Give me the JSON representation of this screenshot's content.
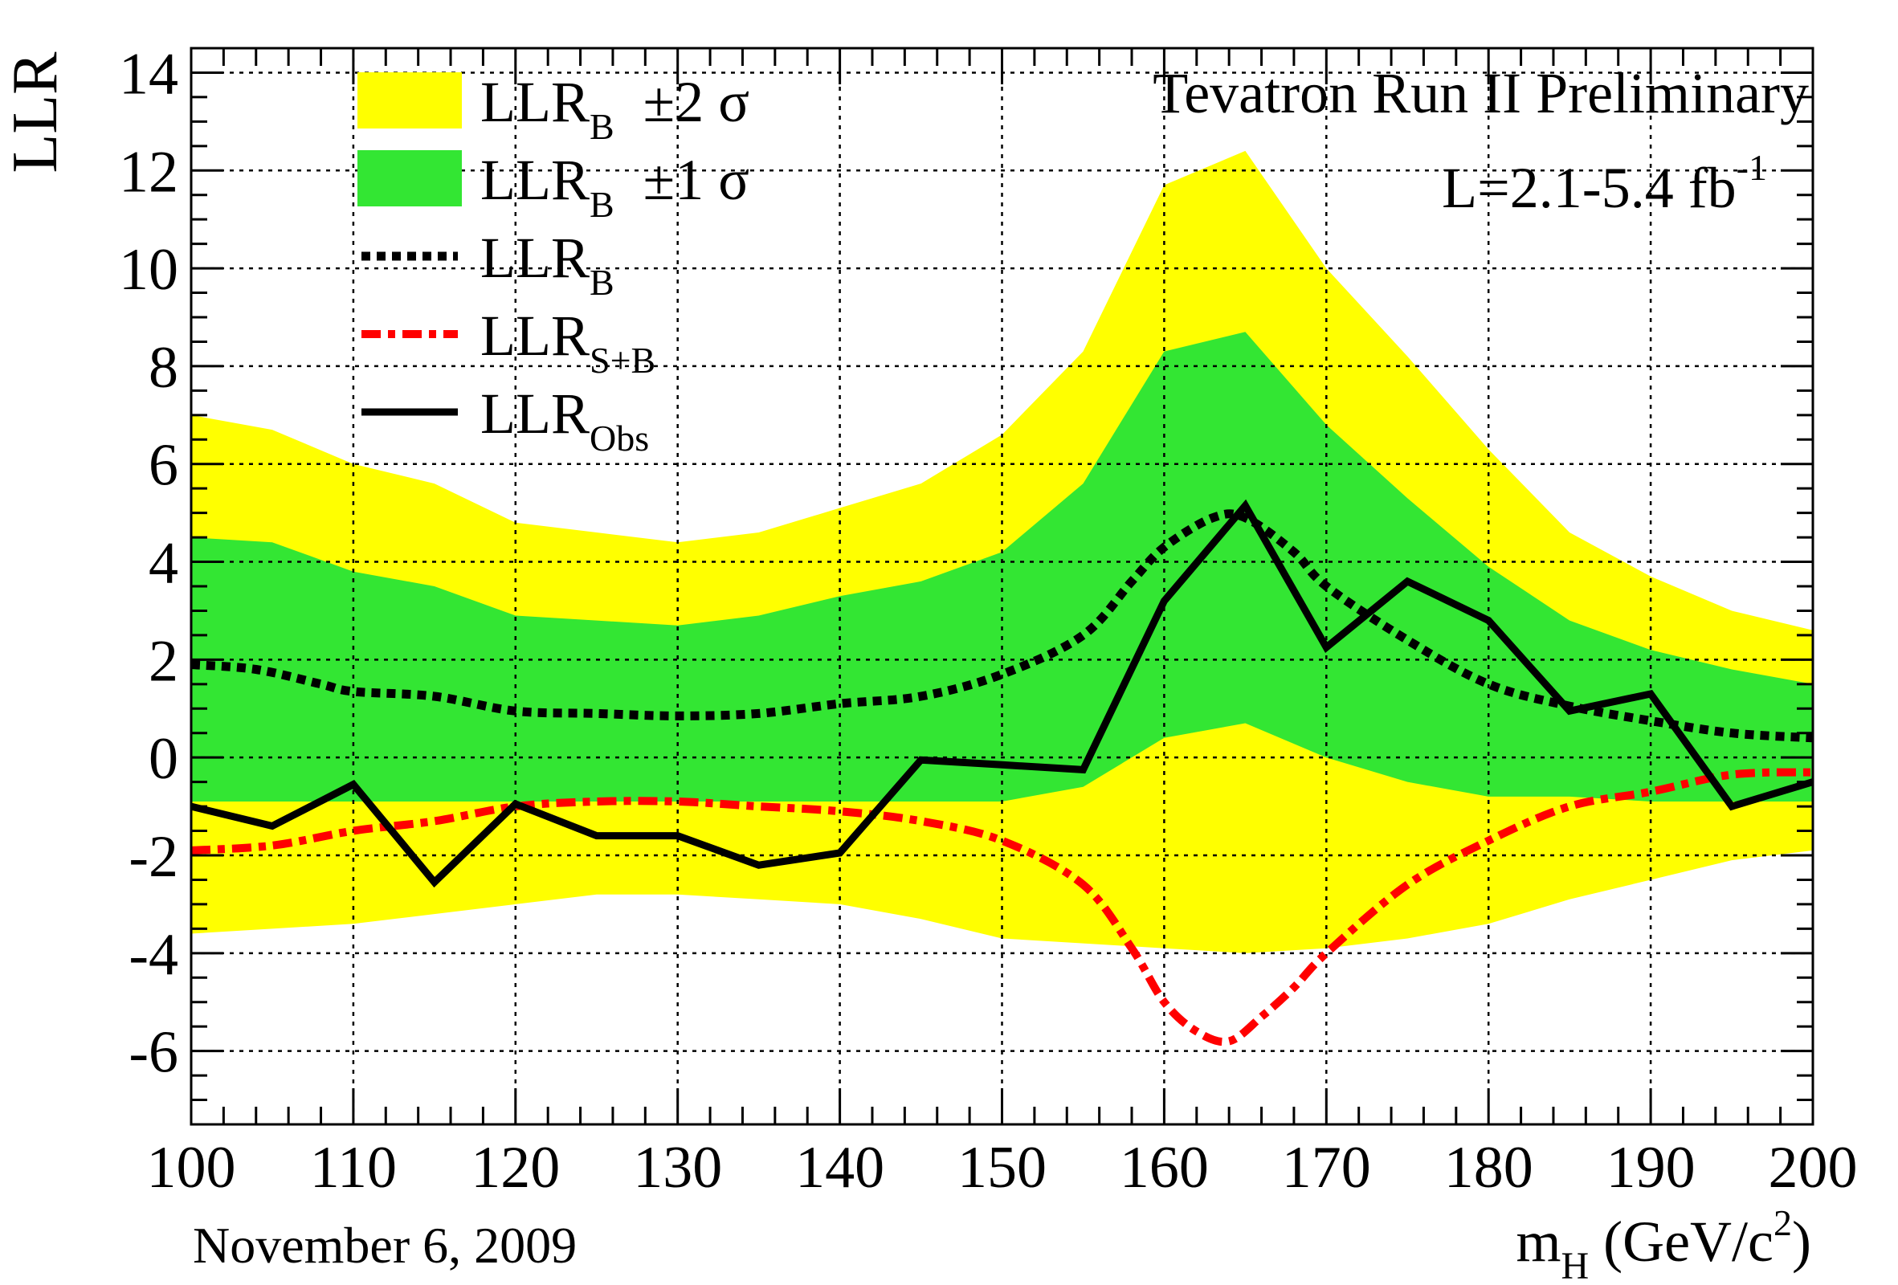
{
  "chart_data": {
    "type": "line",
    "title": "Tevatron Run II Preliminary",
    "lumi": {
      "prefix": "L=2.1-5.4 fb",
      "sup": "-1"
    },
    "date": "November 6, 2009",
    "xlabel": {
      "main": "m",
      "sub": "H",
      "unit_pre": " (GeV/c",
      "unit_sup": "2",
      "unit_post": ")"
    },
    "ylabel": "LLR",
    "xlim": [
      100,
      200
    ],
    "ylim": [
      -7.5,
      14.5
    ],
    "xticks": [
      100,
      110,
      120,
      130,
      140,
      150,
      160,
      170,
      180,
      190,
      200
    ],
    "yticks": [
      -6,
      -4,
      -2,
      0,
      2,
      4,
      6,
      8,
      10,
      12,
      14
    ],
    "grid": true,
    "legend_position": "top-left",
    "x": [
      100,
      105,
      110,
      115,
      120,
      125,
      130,
      135,
      140,
      145,
      150,
      155,
      160,
      165,
      170,
      175,
      180,
      185,
      190,
      195,
      200
    ],
    "bands": [
      {
        "name": "±2 σ",
        "legend": {
          "main": "LLR",
          "sub": "B",
          "suffix": "  ±2 σ"
        },
        "color": "#ffff00",
        "upper": [
          7.0,
          6.7,
          6.0,
          5.6,
          4.8,
          4.6,
          4.4,
          4.6,
          5.1,
          5.6,
          6.6,
          8.3,
          11.7,
          12.4,
          10.0,
          8.2,
          6.3,
          4.6,
          3.7,
          3.0,
          2.6
        ],
        "lower": [
          -3.6,
          -3.5,
          -3.4,
          -3.2,
          -3.0,
          -2.8,
          -2.8,
          -2.9,
          -3.0,
          -3.3,
          -3.7,
          -3.8,
          -3.9,
          -4.0,
          -3.9,
          -3.7,
          -3.4,
          -2.9,
          -2.5,
          -2.1,
          -1.9
        ]
      },
      {
        "name": "±1 σ",
        "legend": {
          "main": "LLR",
          "sub": "B",
          "suffix": "  ±1 σ"
        },
        "color": "#33e633",
        "upper": [
          4.5,
          4.4,
          3.8,
          3.5,
          2.9,
          2.8,
          2.7,
          2.9,
          3.3,
          3.6,
          4.2,
          5.6,
          8.3,
          8.7,
          6.8,
          5.3,
          3.9,
          2.8,
          2.2,
          1.8,
          1.5
        ],
        "lower": [
          -0.9,
          -0.9,
          -0.9,
          -0.9,
          -0.9,
          -0.9,
          -0.9,
          -0.9,
          -0.9,
          -0.9,
          -0.9,
          -0.6,
          0.4,
          0.7,
          0.0,
          -0.5,
          -0.8,
          -0.8,
          -0.9,
          -0.9,
          -0.9
        ]
      }
    ],
    "series": [
      {
        "name": "B",
        "legend": {
          "main": "LLR",
          "sub": "B"
        },
        "color": "#000000",
        "style": "dotted",
        "x": [
          100,
          104,
          108,
          110,
          115,
          120,
          125,
          130,
          135,
          140,
          145,
          150,
          155,
          158,
          160,
          163,
          165,
          168,
          170,
          175,
          180,
          185,
          190,
          195,
          200
        ],
        "y": [
          1.9,
          1.8,
          1.5,
          1.35,
          1.25,
          0.95,
          0.9,
          0.85,
          0.9,
          1.1,
          1.25,
          1.7,
          2.5,
          3.6,
          4.3,
          4.9,
          4.9,
          4.2,
          3.5,
          2.4,
          1.5,
          1.05,
          0.75,
          0.5,
          0.4
        ]
      },
      {
        "name": "S+B",
        "legend": {
          "main": "LLR",
          "sub": "S+B"
        },
        "color": "#ff0000",
        "style": "dashdot",
        "x": [
          100,
          105,
          110,
          115,
          120,
          125,
          130,
          135,
          140,
          145,
          150,
          155,
          158,
          160,
          162,
          164,
          166,
          168,
          170,
          175,
          180,
          185,
          190,
          195,
          200
        ],
        "y": [
          -1.9,
          -1.8,
          -1.5,
          -1.3,
          -1.0,
          -0.9,
          -0.9,
          -1.0,
          -1.1,
          -1.3,
          -1.7,
          -2.6,
          -3.9,
          -5.0,
          -5.6,
          -5.8,
          -5.3,
          -4.7,
          -4.0,
          -2.6,
          -1.7,
          -1.0,
          -0.7,
          -0.35,
          -0.3
        ]
      },
      {
        "name": "Obs",
        "legend": {
          "main": "LLR",
          "sub": "Obs"
        },
        "color": "#000000",
        "style": "solid",
        "x": [
          100,
          105,
          110,
          115,
          120,
          125,
          130,
          135,
          140,
          145,
          150,
          155,
          160,
          165,
          170,
          175,
          180,
          185,
          190,
          195,
          200
        ],
        "y": [
          -1.0,
          -1.4,
          -0.55,
          -2.55,
          -0.95,
          -1.6,
          -1.6,
          -2.2,
          -1.95,
          -0.05,
          -0.15,
          -0.25,
          3.2,
          5.15,
          2.25,
          3.6,
          2.8,
          0.95,
          1.3,
          -1.0,
          -0.5
        ]
      }
    ]
  }
}
